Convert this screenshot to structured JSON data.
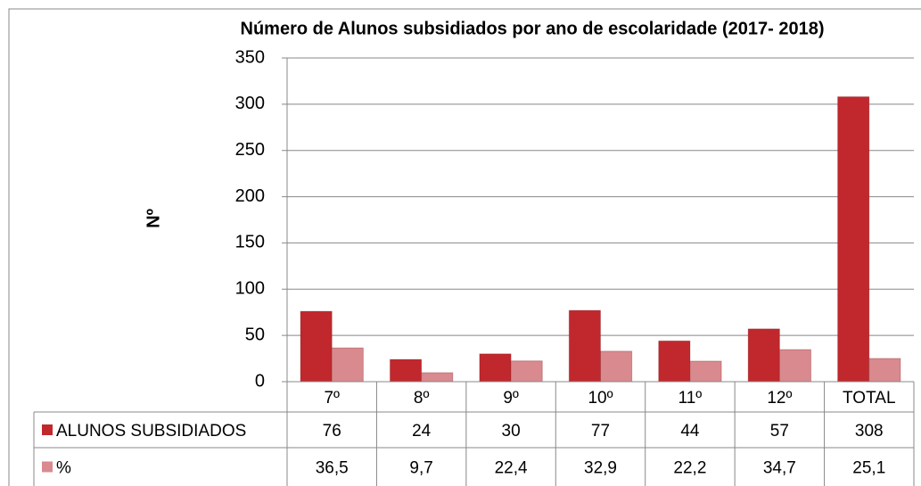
{
  "chart_data": {
    "type": "bar",
    "title": "Número de Alunos  subsidiados por ano de escolaridade (2017- 2018)",
    "y_label": "Nº",
    "categories": [
      "7º",
      "8º",
      "9º",
      "10º",
      "11º",
      "12º",
      "TOTAL"
    ],
    "series": [
      {
        "name": "ALUNOS SUBSIDIADOS",
        "color": "#c0282d",
        "values": [
          76,
          24,
          30,
          77,
          44,
          57,
          308
        ]
      },
      {
        "name": "%",
        "color": "#d98a8e",
        "values": [
          36.5,
          9.7,
          22.4,
          32.9,
          22.2,
          34.7,
          25.1
        ],
        "value_labels": [
          "36,5",
          "9,7",
          "22,4",
          "32,9",
          "22,2",
          "34,7",
          "25,1"
        ]
      }
    ],
    "ylim": [
      0,
      350
    ],
    "yticks": [
      0,
      50,
      100,
      150,
      200,
      250,
      300,
      350
    ],
    "grid": true,
    "legend": "data-table"
  }
}
